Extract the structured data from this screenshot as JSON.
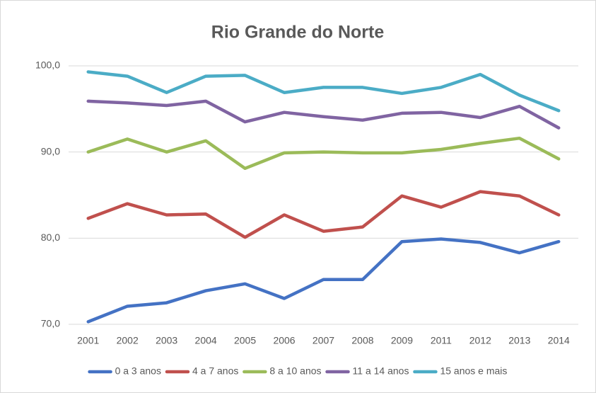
{
  "chart_data": {
    "type": "line",
    "title": "Rio Grande do Norte",
    "categories": [
      "2001",
      "2002",
      "2003",
      "2004",
      "2005",
      "2006",
      "2007",
      "2008",
      "2009",
      "2011",
      "2012",
      "2013",
      "2014"
    ],
    "series": [
      {
        "name": "0 a 3 anos",
        "color": "#4472c4",
        "values": [
          70.3,
          72.1,
          72.5,
          73.9,
          74.7,
          73.0,
          75.2,
          75.2,
          79.6,
          79.9,
          79.5,
          78.3,
          79.6
        ]
      },
      {
        "name": "4 a 7 anos",
        "color": "#c0504d",
        "values": [
          82.3,
          84.0,
          82.7,
          82.8,
          80.1,
          82.7,
          80.8,
          81.3,
          84.9,
          83.6,
          85.4,
          84.9,
          82.7
        ]
      },
      {
        "name": "8 a 10 anos",
        "color": "#9bbb59",
        "values": [
          90.0,
          91.5,
          90.0,
          91.3,
          88.1,
          89.9,
          90.0,
          89.9,
          89.9,
          90.3,
          91.0,
          91.6,
          89.2
        ]
      },
      {
        "name": "11 a 14 anos",
        "color": "#8064a2",
        "values": [
          95.9,
          95.7,
          95.4,
          95.9,
          93.5,
          94.6,
          94.1,
          93.7,
          94.5,
          94.6,
          94.0,
          95.3,
          92.8
        ]
      },
      {
        "name": "15 anos e mais",
        "color": "#4bacc6",
        "values": [
          99.3,
          98.8,
          96.9,
          98.8,
          98.9,
          96.9,
          97.5,
          97.5,
          96.8,
          97.5,
          99.0,
          96.6,
          94.8
        ]
      }
    ],
    "ylim": [
      70,
      100
    ],
    "yticks": [
      {
        "value": 70,
        "label": "70,0"
      },
      {
        "value": 80,
        "label": "80,0"
      },
      {
        "value": 90,
        "label": "90,0"
      },
      {
        "value": 100,
        "label": "100,0"
      }
    ],
    "grid": true,
    "legend": "bottom"
  }
}
